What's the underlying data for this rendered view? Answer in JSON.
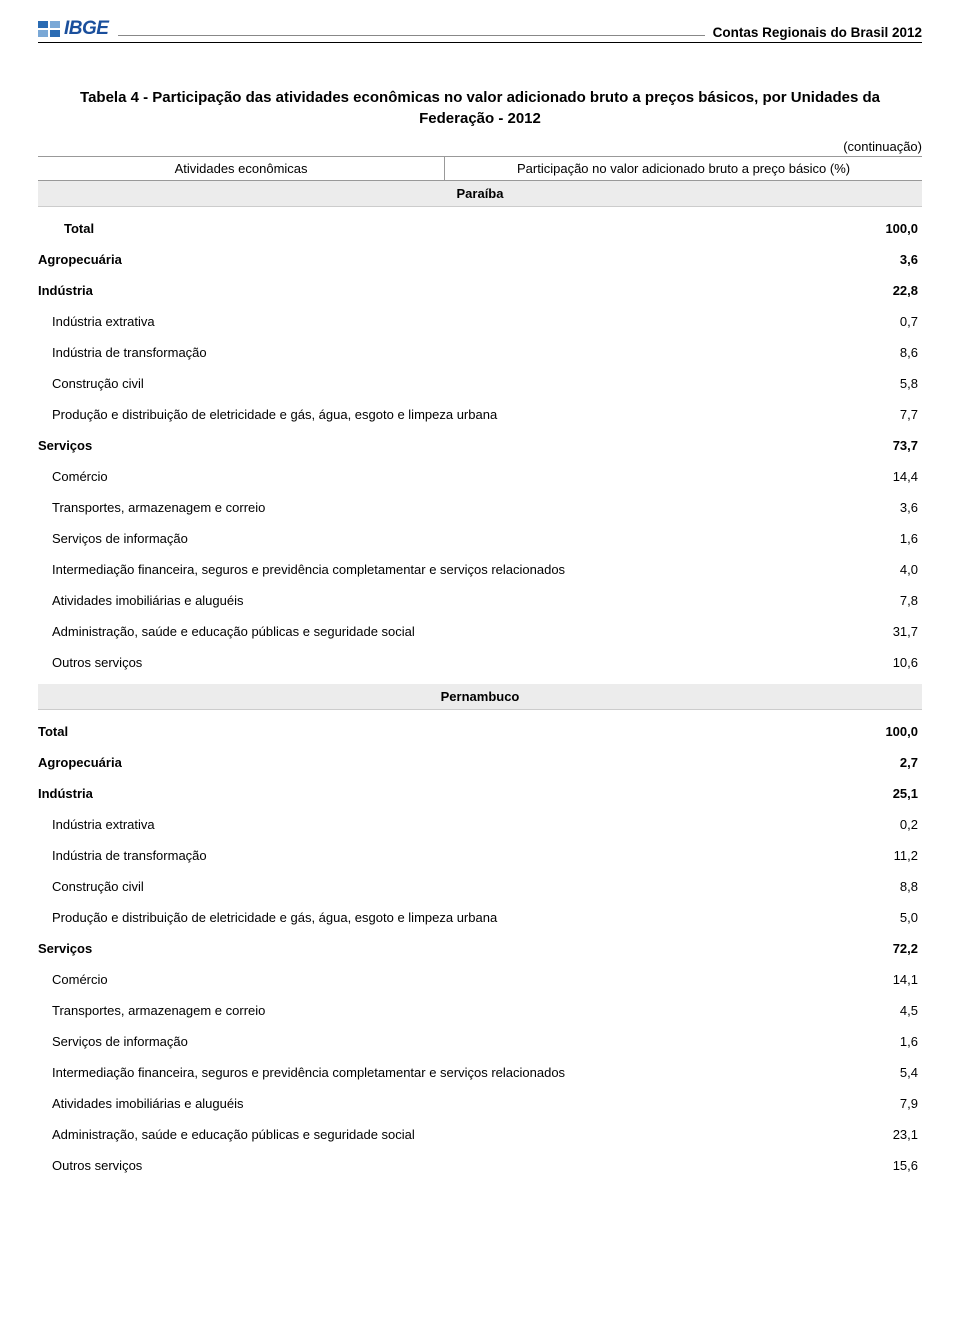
{
  "header": {
    "logo_text": "IBGE",
    "doc_title": "Contas Regionais do Brasil 2012"
  },
  "title": "Tabela 4 - Participação das atividades econômicas no valor adicionado bruto a preços básicos, por Unidades da Federação - 2012",
  "continuation": "(continuação)",
  "table_head": {
    "left": "Atividades econômicas",
    "right": "Participação no valor adicionado bruto a preço básico (%)"
  },
  "states": [
    {
      "name": "Paraíba",
      "rows": [
        {
          "level": 0,
          "label": "Total",
          "value": "100,0"
        },
        {
          "level": 1,
          "label": "Agropecuária",
          "value": "3,6"
        },
        {
          "level": 1,
          "label": "Indústria",
          "value": "22,8"
        },
        {
          "level": 2,
          "label": "Indústria extrativa",
          "value": "0,7"
        },
        {
          "level": 2,
          "label": "Indústria de transformação",
          "value": "8,6"
        },
        {
          "level": 2,
          "label": "Construção civil",
          "value": "5,8"
        },
        {
          "level": 2,
          "label": "Produção e distribuição de eletricidade e gás, água, esgoto e limpeza urbana",
          "value": "7,7"
        },
        {
          "level": 1,
          "label": "Serviços",
          "value": "73,7"
        },
        {
          "level": 2,
          "label": "Comércio",
          "value": "14,4"
        },
        {
          "level": 2,
          "label": "Transportes, armazenagem e correio",
          "value": "3,6"
        },
        {
          "level": 2,
          "label": "Serviços de informação",
          "value": "1,6"
        },
        {
          "level": 2,
          "label": "Intermediação financeira, seguros e previdência completamentar e serviços relacionados",
          "value": "4,0"
        },
        {
          "level": 2,
          "label": "Atividades imobiliárias e aluguéis",
          "value": "7,8"
        },
        {
          "level": 2,
          "label": "Administração, saúde e educação públicas e seguridade social",
          "value": "31,7"
        },
        {
          "level": 2,
          "label": "Outros serviços",
          "value": "10,6"
        }
      ]
    },
    {
      "name": "Pernambuco",
      "rows": [
        {
          "level": 1,
          "label": "Total",
          "value": "100,0"
        },
        {
          "level": 1,
          "label": "Agropecuária",
          "value": "2,7"
        },
        {
          "level": 1,
          "label": "Indústria",
          "value": "25,1"
        },
        {
          "level": 2,
          "label": "Indústria extrativa",
          "value": "0,2"
        },
        {
          "level": 2,
          "label": "Indústria de transformação",
          "value": "11,2"
        },
        {
          "level": 2,
          "label": "Construção civil",
          "value": "8,8"
        },
        {
          "level": 2,
          "label": "Produção e distribuição de eletricidade e gás, água, esgoto e limpeza urbana",
          "value": "5,0"
        },
        {
          "level": 1,
          "label": "Serviços",
          "value": "72,2"
        },
        {
          "level": 2,
          "label": "Comércio",
          "value": "14,1"
        },
        {
          "level": 2,
          "label": "Transportes, armazenagem e correio",
          "value": "4,5"
        },
        {
          "level": 2,
          "label": "Serviços de informação",
          "value": "1,6"
        },
        {
          "level": 2,
          "label": "Intermediação financeira, seguros e previdência completamentar e serviços relacionados",
          "value": "5,4"
        },
        {
          "level": 2,
          "label": "Atividades imobiliárias e aluguéis",
          "value": "7,9"
        },
        {
          "level": 2,
          "label": "Administração, saúde e educação públicas e seguridade social",
          "value": "23,1"
        },
        {
          "level": 2,
          "label": "Outros serviços",
          "value": "15,6"
        }
      ]
    }
  ]
}
